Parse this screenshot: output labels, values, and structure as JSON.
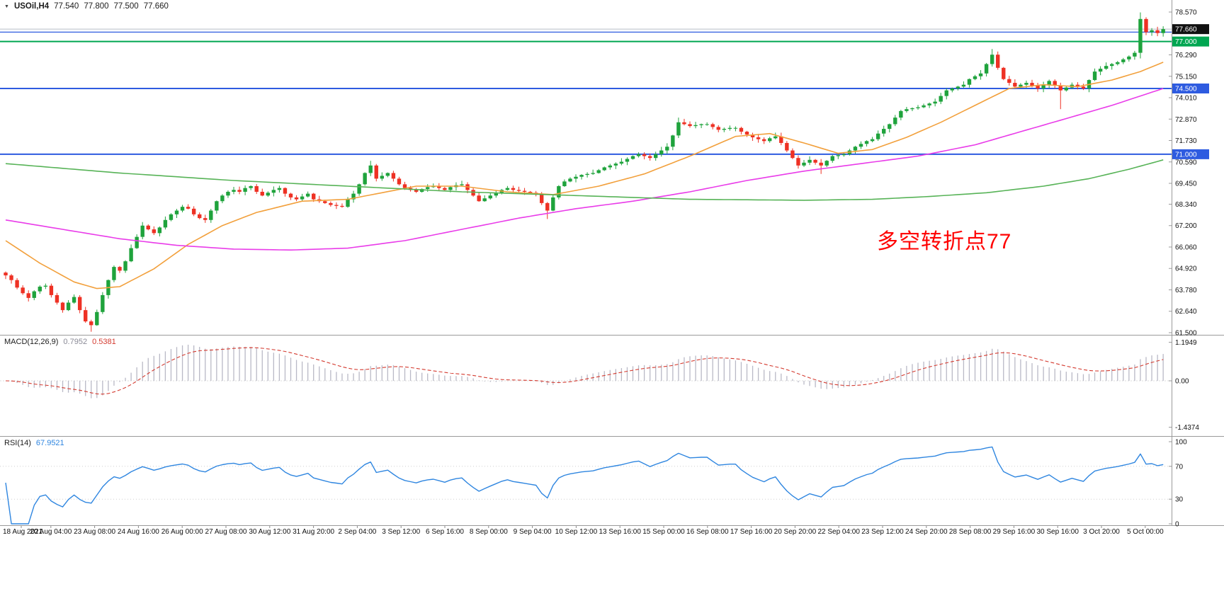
{
  "header": {
    "symbol_period": "USOil,H4",
    "open": "77.540",
    "high": "77.800",
    "low": "77.500",
    "close": "77.660"
  },
  "time_axis": [
    "18 Aug 2021",
    "20 Aug 04:00",
    "23 Aug 08:00",
    "24 Aug 16:00",
    "26 Aug 00:00",
    "27 Aug 08:00",
    "30 Aug 12:00",
    "31 Aug 20:00",
    "2 Sep 04:00",
    "3 Sep 12:00",
    "6 Sep 16:00",
    "8 Sep 00:00",
    "9 Sep 04:00",
    "10 Sep 12:00",
    "13 Sep 16:00",
    "15 Sep 00:00",
    "16 Sep 08:00",
    "17 Sep 16:00",
    "20 Sep 20:00",
    "22 Sep 04:00",
    "23 Sep 12:00",
    "24 Sep 20:00",
    "28 Sep 08:00",
    "29 Sep 16:00",
    "30 Sep 16:00",
    "3 Oct 20:00",
    "5 Oct 00:00"
  ],
  "chart_data": [
    {
      "type": "candlestick",
      "title": "USOil,H4",
      "symbol": "USOil",
      "timeframe": "H4",
      "up_color": "#1fa33c",
      "down_color": "#ee3124",
      "ylim": [
        61.5,
        78.57
      ],
      "first_open": 64.7,
      "close": [
        64.55,
        64.3,
        63.9,
        63.6,
        63.35,
        63.7,
        63.95,
        64.0,
        63.5,
        63.1,
        62.7,
        63.1,
        63.4,
        62.7,
        62.1,
        61.9,
        62.6,
        63.5,
        64.3,
        65.0,
        64.8,
        65.3,
        66.0,
        66.6,
        67.2,
        67.0,
        66.8,
        67.1,
        67.5,
        67.8,
        68.0,
        68.2,
        68.1,
        67.8,
        67.6,
        67.5,
        68.0,
        68.5,
        68.8,
        69.0,
        69.1,
        69.0,
        69.2,
        69.3,
        69.0,
        68.8,
        68.95,
        69.1,
        69.2,
        68.9,
        68.7,
        68.6,
        68.75,
        68.9,
        68.6,
        68.5,
        68.4,
        68.3,
        68.25,
        68.2,
        68.6,
        68.9,
        69.4,
        70.0,
        70.4,
        69.7,
        69.85,
        70.0,
        69.7,
        69.4,
        69.2,
        69.1,
        69.0,
        69.15,
        69.25,
        69.3,
        69.2,
        69.1,
        69.25,
        69.35,
        69.4,
        69.1,
        68.8,
        68.5,
        68.65,
        68.8,
        68.95,
        69.1,
        69.2,
        69.1,
        69.05,
        69.0,
        68.95,
        68.9,
        68.4,
        68.0,
        68.7,
        69.3,
        69.55,
        69.7,
        69.8,
        69.9,
        69.95,
        70.0,
        70.15,
        70.3,
        70.4,
        70.5,
        70.6,
        70.75,
        70.9,
        71.0,
        70.9,
        70.8,
        71.0,
        71.2,
        71.4,
        72.0,
        72.7,
        72.6,
        72.5,
        72.55,
        72.6,
        72.6,
        72.45,
        72.3,
        72.35,
        72.4,
        72.4,
        72.2,
        72.05,
        71.9,
        71.8,
        71.7,
        71.85,
        71.95,
        71.6,
        71.2,
        70.8,
        70.4,
        70.55,
        70.7,
        70.55,
        70.4,
        70.65,
        70.9,
        70.95,
        71.0,
        71.2,
        71.4,
        71.55,
        71.7,
        71.8,
        72.1,
        72.35,
        72.6,
        72.95,
        73.3,
        73.4,
        73.45,
        73.5,
        73.6,
        73.7,
        73.8,
        74.1,
        74.4,
        74.5,
        74.6,
        74.7,
        75.0,
        75.15,
        75.3,
        75.8,
        76.3,
        75.6,
        75.0,
        74.8,
        74.6,
        74.7,
        74.8,
        74.65,
        74.5,
        74.7,
        74.9,
        74.65,
        74.4,
        74.55,
        74.7,
        74.6,
        74.5,
        74.95,
        75.4,
        75.55,
        75.7,
        75.8,
        75.9,
        76.05,
        76.2,
        76.4,
        78.2,
        77.5,
        77.6,
        77.45,
        77.66
      ],
      "extremes": {
        "15": {
          "l": 61.55
        },
        "64": {
          "h": 70.65
        },
        "95": {
          "l": 67.55
        },
        "118": {
          "h": 72.95
        },
        "143": {
          "l": 69.95
        },
        "173": {
          "h": 76.6
        },
        "185": {
          "l": 73.4
        },
        "199": {
          "h": 78.55,
          "l": 76.1
        }
      },
      "moving_averages": [
        {
          "name": "ma-fast",
          "color": "#f2a03c",
          "points": [
            [
              0,
              66.4
            ],
            [
              6,
              65.2
            ],
            [
              12,
              64.2
            ],
            [
              16,
              63.85
            ],
            [
              20,
              63.95
            ],
            [
              26,
              64.9
            ],
            [
              32,
              66.2
            ],
            [
              38,
              67.2
            ],
            [
              44,
              67.9
            ],
            [
              52,
              68.5
            ],
            [
              60,
              68.6
            ],
            [
              66,
              68.95
            ],
            [
              72,
              69.3
            ],
            [
              80,
              69.3
            ],
            [
              88,
              69.0
            ],
            [
              96,
              68.85
            ],
            [
              104,
              69.3
            ],
            [
              112,
              69.95
            ],
            [
              120,
              70.9
            ],
            [
              128,
              71.95
            ],
            [
              134,
              72.1
            ],
            [
              140,
              71.6
            ],
            [
              146,
              71.05
            ],
            [
              152,
              71.25
            ],
            [
              158,
              71.9
            ],
            [
              164,
              72.7
            ],
            [
              170,
              73.6
            ],
            [
              176,
              74.5
            ],
            [
              182,
              74.7
            ],
            [
              188,
              74.6
            ],
            [
              194,
              74.95
            ],
            [
              199,
              75.4
            ],
            [
              203,
              75.9
            ]
          ]
        },
        {
          "name": "ma-medium",
          "color": "#e93ce9",
          "points": [
            [
              0,
              67.5
            ],
            [
              10,
              67.0
            ],
            [
              20,
              66.5
            ],
            [
              30,
              66.15
            ],
            [
              40,
              65.95
            ],
            [
              50,
              65.9
            ],
            [
              60,
              66.0
            ],
            [
              70,
              66.4
            ],
            [
              80,
              67.0
            ],
            [
              90,
              67.6
            ],
            [
              100,
              68.1
            ],
            [
              110,
              68.5
            ],
            [
              120,
              69.0
            ],
            [
              130,
              69.6
            ],
            [
              140,
              70.1
            ],
            [
              150,
              70.5
            ],
            [
              160,
              70.9
            ],
            [
              170,
              71.5
            ],
            [
              178,
              72.2
            ],
            [
              186,
              72.9
            ],
            [
              194,
              73.6
            ],
            [
              203,
              74.5
            ]
          ]
        },
        {
          "name": "ma-slow",
          "color": "#57b357",
          "points": [
            [
              0,
              70.5
            ],
            [
              20,
              70.0
            ],
            [
              40,
              69.6
            ],
            [
              60,
              69.3
            ],
            [
              80,
              69.0
            ],
            [
              100,
              68.8
            ],
            [
              120,
              68.6
            ],
            [
              140,
              68.55
            ],
            [
              152,
              68.6
            ],
            [
              162,
              68.75
            ],
            [
              172,
              68.95
            ],
            [
              182,
              69.3
            ],
            [
              190,
              69.7
            ],
            [
              197,
              70.2
            ],
            [
              203,
              70.7
            ]
          ]
        }
      ],
      "hlines": [
        {
          "price": 77.5,
          "color": "#2e5be0",
          "width": 1.2,
          "label": null
        },
        {
          "price": 77.0,
          "color": "#00a651",
          "width": 2,
          "label": "77.000"
        },
        {
          "price": 74.5,
          "color": "#2e5be0",
          "width": 2,
          "label": "74.500"
        },
        {
          "price": 71.0,
          "color": "#2e5be0",
          "width": 2,
          "label": "71.000"
        }
      ],
      "last": {
        "price": 77.66,
        "label": "77.660",
        "box_color": "#111111",
        "line_color": "#b9bec7"
      },
      "y_axis": {
        "ticks": [
          "78.570",
          "76.290",
          "75.150",
          "74.010",
          "72.870",
          "71.730",
          "70.590",
          "69.450",
          "68.340",
          "67.200",
          "66.060",
          "64.920",
          "63.780",
          "62.640",
          "61.500"
        ]
      },
      "annotation": {
        "text": "多空转折点77",
        "color": "#ff0000"
      }
    },
    {
      "type": "bar+line",
      "name": "MACD",
      "label": "MACD(12,26,9)",
      "params": {
        "fast": 12,
        "slow": 26,
        "signal": 9
      },
      "current_macd": "0.7952",
      "current_signal": "0.5381",
      "y_ticks": [
        "1.1949",
        "0.00",
        "-1.4374"
      ],
      "hist_color": "#b9b9c6",
      "signal_color": "#d43a2f",
      "derived_from": "close"
    },
    {
      "type": "line",
      "name": "RSI",
      "label": "RSI(14)",
      "period": 14,
      "current": "67.9521",
      "y_ticks": [
        "100",
        "70",
        "30",
        "0"
      ],
      "levels": [
        70,
        30
      ],
      "color": "#2f86e0",
      "derived_from": "close"
    }
  ]
}
